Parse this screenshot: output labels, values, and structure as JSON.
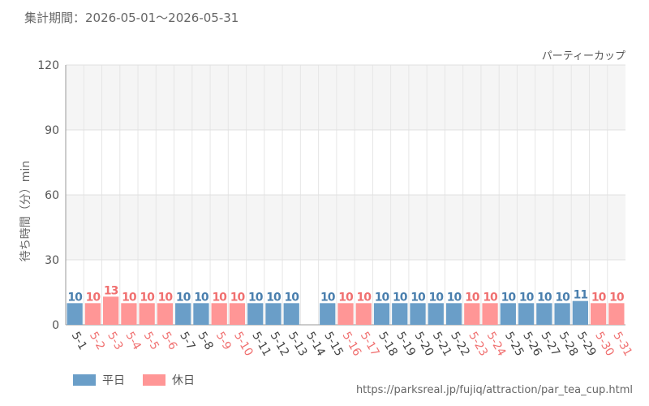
{
  "period": {
    "label": "集計期間：2026-05-01～2026-05-31"
  },
  "source": {
    "url": "https://parksreal.jp/fujiq/attraction/par_tea_cup.html"
  },
  "colors": {
    "weekday": "#6a9ec8",
    "holiday": "#ff9696",
    "weekday_text": "#4a7fae",
    "holiday_text": "#f07070"
  },
  "chart_data": {
    "type": "bar",
    "title": "パーティーカップ",
    "ylabel": "待ち時間（分）min",
    "ylim": [
      0,
      120
    ],
    "yticks": [
      0,
      30,
      60,
      90,
      120
    ],
    "grid": true,
    "legend_position": "bottom-left",
    "categories": [
      "5-1",
      "5-2",
      "5-3",
      "5-4",
      "5-5",
      "5-6",
      "5-7",
      "5-8",
      "5-9",
      "5-10",
      "5-11",
      "5-12",
      "5-13",
      "5-14",
      "5-15",
      "5-16",
      "5-17",
      "5-18",
      "5-19",
      "5-20",
      "5-21",
      "5-22",
      "5-23",
      "5-24",
      "5-25",
      "5-26",
      "5-27",
      "5-28",
      "5-29",
      "5-30",
      "5-31"
    ],
    "values": [
      10,
      10,
      13,
      10,
      10,
      10,
      10,
      10,
      10,
      10,
      10,
      10,
      10,
      null,
      10,
      10,
      10,
      10,
      10,
      10,
      10,
      10,
      10,
      10,
      10,
      10,
      10,
      10,
      11,
      10,
      10
    ],
    "day_type": [
      "weekday",
      "holiday",
      "holiday",
      "holiday",
      "holiday",
      "holiday",
      "weekday",
      "weekday",
      "holiday",
      "holiday",
      "weekday",
      "weekday",
      "weekday",
      "weekday",
      "weekday",
      "holiday",
      "holiday",
      "weekday",
      "weekday",
      "weekday",
      "weekday",
      "weekday",
      "holiday",
      "holiday",
      "weekday",
      "weekday",
      "weekday",
      "weekday",
      "weekday",
      "holiday",
      "holiday"
    ],
    "legend": [
      {
        "key": "weekday",
        "label": "平日"
      },
      {
        "key": "holiday",
        "label": "休日"
      }
    ]
  }
}
